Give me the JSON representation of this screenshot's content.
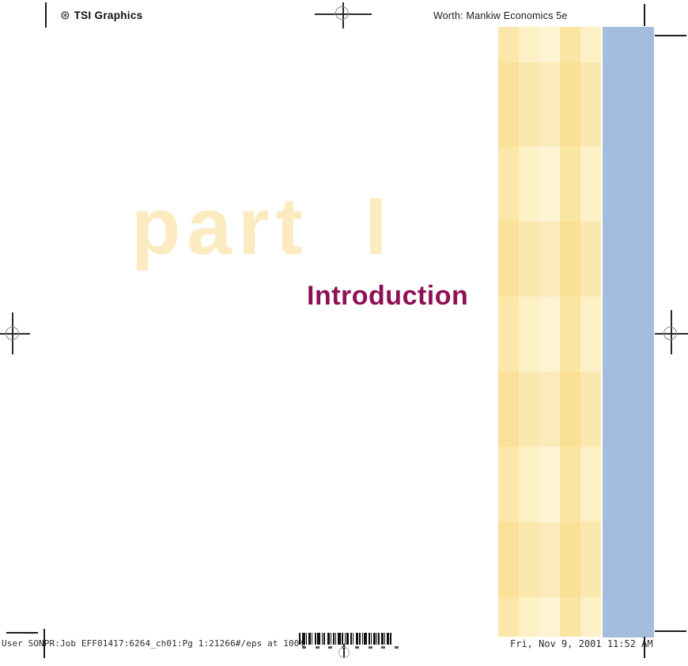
{
  "header": {
    "logo_text": "TSI Graphics",
    "slug": "Worth: Mankiw Economics 5e"
  },
  "main": {
    "part_label": "part I",
    "part_title": "Introduction"
  },
  "footer": {
    "job_info": "User SONPR:Job EFF01417:6264_ch01:Pg 1:21266#/eps at 100%",
    "datetime": "Fri, Nov 9, 2001 11:52 AM",
    "barcode_bars": [
      [
        2,
        2
      ],
      [
        4,
        1
      ],
      [
        1,
        2
      ],
      [
        3,
        1
      ],
      [
        1,
        3
      ],
      [
        2,
        1
      ],
      [
        4,
        2
      ],
      [
        1,
        1
      ],
      [
        2,
        3
      ],
      [
        3,
        1
      ],
      [
        1,
        2
      ],
      [
        2,
        1
      ],
      [
        1,
        2
      ],
      [
        4,
        1
      ],
      [
        2,
        2
      ],
      [
        1,
        1
      ],
      [
        3,
        2
      ],
      [
        2,
        1
      ],
      [
        1,
        3
      ],
      [
        3,
        1
      ],
      [
        2,
        2
      ],
      [
        1,
        1
      ],
      [
        4,
        2
      ],
      [
        2,
        1
      ],
      [
        1,
        2
      ],
      [
        3,
        1
      ],
      [
        1,
        1
      ],
      [
        2,
        2
      ],
      [
        3,
        1
      ],
      [
        1,
        2
      ],
      [
        3,
        1
      ],
      [
        2,
        0
      ]
    ],
    "barcode_tick_count": 8
  },
  "icons": {
    "tsi_logo": "⊛"
  },
  "colors": {
    "part_cream": "#fceac0",
    "title_magenta": "#8e1055",
    "band_blue": "#a4bddc",
    "stripe_a": "#fbe7a8",
    "stripe_b": "#fdf0c4",
    "stripe_c": "#fdf4d4",
    "stripe_d": "#fbe5a2",
    "stripe_e": "#fdf0c4"
  }
}
